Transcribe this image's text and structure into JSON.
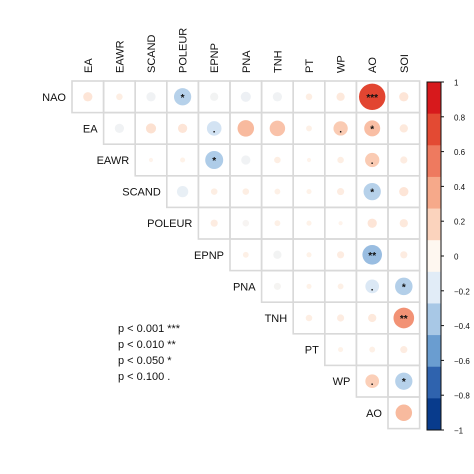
{
  "chart_data": {
    "type": "heatmap",
    "variables": [
      "NAO",
      "EA",
      "EAWR",
      "SCAND",
      "POLEUR",
      "EPNP",
      "PNA",
      "TNH",
      "PT",
      "WP",
      "AO",
      "SOI"
    ],
    "column_labels": [
      "EA",
      "EAWR",
      "SCAND",
      "POLEUR",
      "EPNP",
      "PNA",
      "TNH",
      "PT",
      "WP",
      "AO",
      "SOI"
    ],
    "row_labels": [
      "NAO",
      "EA",
      "EAWR",
      "SCAND",
      "POLEUR",
      "EPNP",
      "PNA",
      "TNH",
      "PT",
      "WP",
      "AO"
    ],
    "cells": [
      {
        "row": "NAO",
        "col": "EA",
        "r": 0.1,
        "sig": ""
      },
      {
        "row": "NAO",
        "col": "EAWR",
        "r": 0.05,
        "sig": ""
      },
      {
        "row": "NAO",
        "col": "SCAND",
        "r": -0.1,
        "sig": ""
      },
      {
        "row": "NAO",
        "col": "POLEUR",
        "r": -0.35,
        "sig": "*"
      },
      {
        "row": "NAO",
        "col": "EPNP",
        "r": -0.08,
        "sig": ""
      },
      {
        "row": "NAO",
        "col": "PNA",
        "r": -0.12,
        "sig": ""
      },
      {
        "row": "NAO",
        "col": "TNH",
        "r": -0.1,
        "sig": ""
      },
      {
        "row": "NAO",
        "col": "PT",
        "r": 0.05,
        "sig": ""
      },
      {
        "row": "NAO",
        "col": "WP",
        "r": 0.08,
        "sig": ""
      },
      {
        "row": "NAO",
        "col": "AO",
        "r": 0.82,
        "sig": "***"
      },
      {
        "row": "NAO",
        "col": "SOI",
        "r": 0.1,
        "sig": ""
      },
      {
        "row": "EA",
        "col": "EAWR",
        "r": -0.1,
        "sig": ""
      },
      {
        "row": "EA",
        "col": "SCAND",
        "r": 0.12,
        "sig": ""
      },
      {
        "row": "EA",
        "col": "POLEUR",
        "r": 0.1,
        "sig": ""
      },
      {
        "row": "EA",
        "col": "EPNP",
        "r": -0.25,
        "sig": "."
      },
      {
        "row": "EA",
        "col": "PNA",
        "r": 0.32,
        "sig": ""
      },
      {
        "row": "EA",
        "col": "TNH",
        "r": 0.28,
        "sig": ""
      },
      {
        "row": "EA",
        "col": "PT",
        "r": 0.04,
        "sig": ""
      },
      {
        "row": "EA",
        "col": "WP",
        "r": 0.24,
        "sig": "."
      },
      {
        "row": "EA",
        "col": "AO",
        "r": 0.3,
        "sig": "*"
      },
      {
        "row": "EA",
        "col": "SOI",
        "r": 0.08,
        "sig": ""
      },
      {
        "row": "EAWR",
        "col": "SCAND",
        "r": 0.02,
        "sig": ""
      },
      {
        "row": "EAWR",
        "col": "POLEUR",
        "r": 0.03,
        "sig": ""
      },
      {
        "row": "EAWR",
        "col": "EPNP",
        "r": -0.38,
        "sig": "*"
      },
      {
        "row": "EAWR",
        "col": "PNA",
        "r": -0.1,
        "sig": ""
      },
      {
        "row": "EAWR",
        "col": "TNH",
        "r": 0.05,
        "sig": ""
      },
      {
        "row": "EAWR",
        "col": "PT",
        "r": 0.02,
        "sig": ""
      },
      {
        "row": "EAWR",
        "col": "WP",
        "r": 0.05,
        "sig": ""
      },
      {
        "row": "EAWR",
        "col": "AO",
        "r": 0.24,
        "sig": "."
      },
      {
        "row": "EAWR",
        "col": "SOI",
        "r": 0.06,
        "sig": ""
      },
      {
        "row": "SCAND",
        "col": "POLEUR",
        "r": -0.15,
        "sig": ""
      },
      {
        "row": "SCAND",
        "col": "EPNP",
        "r": 0.05,
        "sig": ""
      },
      {
        "row": "SCAND",
        "col": "PNA",
        "r": 0.05,
        "sig": ""
      },
      {
        "row": "SCAND",
        "col": "TNH",
        "r": 0.04,
        "sig": ""
      },
      {
        "row": "SCAND",
        "col": "PT",
        "r": 0.03,
        "sig": ""
      },
      {
        "row": "SCAND",
        "col": "WP",
        "r": 0.06,
        "sig": ""
      },
      {
        "row": "SCAND",
        "col": "AO",
        "r": -0.35,
        "sig": "*"
      },
      {
        "row": "SCAND",
        "col": "SOI",
        "r": 0.1,
        "sig": ""
      },
      {
        "row": "POLEUR",
        "col": "EPNP",
        "r": 0.06,
        "sig": ""
      },
      {
        "row": "POLEUR",
        "col": "PNA",
        "r": -0.05,
        "sig": ""
      },
      {
        "row": "POLEUR",
        "col": "TNH",
        "r": 0.04,
        "sig": ""
      },
      {
        "row": "POLEUR",
        "col": "PT",
        "r": 0.03,
        "sig": ""
      },
      {
        "row": "POLEUR",
        "col": "WP",
        "r": 0.02,
        "sig": ""
      },
      {
        "row": "POLEUR",
        "col": "AO",
        "r": 0.1,
        "sig": ""
      },
      {
        "row": "POLEUR",
        "col": "SOI",
        "r": 0.08,
        "sig": ""
      },
      {
        "row": "EPNP",
        "col": "PNA",
        "r": 0.04,
        "sig": ""
      },
      {
        "row": "EPNP",
        "col": "TNH",
        "r": -0.08,
        "sig": ""
      },
      {
        "row": "EPNP",
        "col": "PT",
        "r": 0.03,
        "sig": ""
      },
      {
        "row": "EPNP",
        "col": "WP",
        "r": 0.06,
        "sig": ""
      },
      {
        "row": "EPNP",
        "col": "AO",
        "r": -0.45,
        "sig": "**"
      },
      {
        "row": "EPNP",
        "col": "SOI",
        "r": 0.06,
        "sig": ""
      },
      {
        "row": "PNA",
        "col": "TNH",
        "r": -0.06,
        "sig": ""
      },
      {
        "row": "PNA",
        "col": "PT",
        "r": 0.03,
        "sig": ""
      },
      {
        "row": "PNA",
        "col": "WP",
        "r": 0.04,
        "sig": ""
      },
      {
        "row": "PNA",
        "col": "AO",
        "r": -0.22,
        "sig": "."
      },
      {
        "row": "PNA",
        "col": "SOI",
        "r": -0.36,
        "sig": "*"
      },
      {
        "row": "TNH",
        "col": "PT",
        "r": 0.05,
        "sig": ""
      },
      {
        "row": "TNH",
        "col": "WP",
        "r": 0.06,
        "sig": ""
      },
      {
        "row": "TNH",
        "col": "AO",
        "r": 0.08,
        "sig": ""
      },
      {
        "row": "TNH",
        "col": "SOI",
        "r": 0.5,
        "sig": "**"
      },
      {
        "row": "PT",
        "col": "WP",
        "r": 0.03,
        "sig": ""
      },
      {
        "row": "PT",
        "col": "AO",
        "r": 0.04,
        "sig": ""
      },
      {
        "row": "PT",
        "col": "SOI",
        "r": 0.06,
        "sig": ""
      },
      {
        "row": "WP",
        "col": "AO",
        "r": 0.22,
        "sig": "."
      },
      {
        "row": "WP",
        "col": "SOI",
        "r": -0.35,
        "sig": "*"
      },
      {
        "row": "AO",
        "col": "SOI",
        "r": 0.32,
        "sig": ""
      }
    ],
    "colorbar": {
      "range": [
        -1,
        1
      ],
      "ticks": [
        1,
        0.8,
        0.6,
        0.4,
        0.2,
        0,
        -0.2,
        -0.4,
        -0.6,
        -0.8,
        -1
      ],
      "tick_labels": [
        "1",
        "0.8",
        "0.6",
        "0.4",
        "0.2",
        "0",
        "−0.2",
        "−0.4",
        "−0.6",
        "−0.8",
        "−1"
      ],
      "colors_top_to_bottom": [
        "#d7191c",
        "#e34a33",
        "#ee7a5f",
        "#f6a98a",
        "#fbd3bd",
        "#fef7f0",
        "#e1ecf7",
        "#a8c8e6",
        "#6a9dd0",
        "#2f63ae",
        "#083b8c"
      ]
    }
  },
  "significance_legend": [
    "p < 0.001 ***",
    "p < 0.010 **",
    "p < 0.050 *",
    "p < 0.100 ."
  ]
}
